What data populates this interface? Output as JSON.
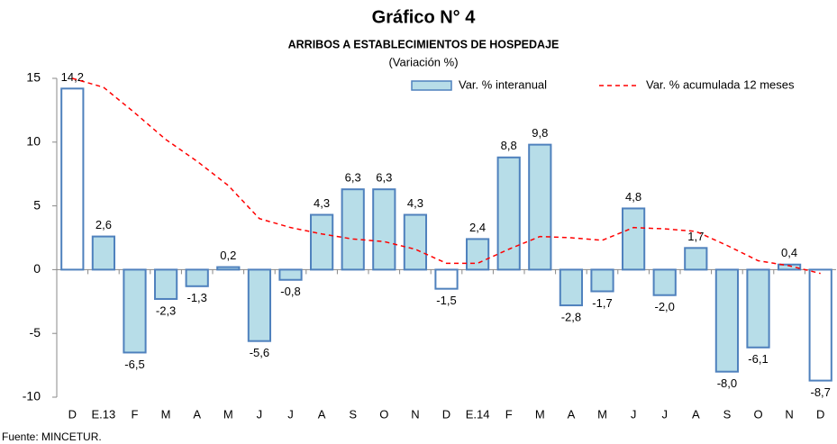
{
  "chart_data": {
    "type": "bar_line",
    "title": "Gráfico N° 4",
    "subtitle": "ARRIBOS A ESTABLECIMIENTOS DE HOSPEDAJE",
    "unit_label": "(Variación %)",
    "source": "Fuente: MINCETUR.",
    "categories": [
      "D",
      "E.13",
      "F",
      "M",
      "A",
      "M",
      "J",
      "J",
      "A",
      "S",
      "O",
      "N",
      "D",
      "E.14",
      "F",
      "M",
      "A",
      "M",
      "J",
      "J",
      "A",
      "S",
      "O",
      "N",
      "D"
    ],
    "series": [
      {
        "name": "Var. % interanual",
        "type": "bar",
        "color": "#b7dde8",
        "edge_color": "#4f81bd",
        "colors": [
          "#ffffff",
          "#b7dde8",
          "#b7dde8",
          "#b7dde8",
          "#b7dde8",
          "#b7dde8",
          "#b7dde8",
          "#b7dde8",
          "#b7dde8",
          "#b7dde8",
          "#b7dde8",
          "#b7dde8",
          "#ffffff",
          "#b7dde8",
          "#b7dde8",
          "#b7dde8",
          "#b7dde8",
          "#b7dde8",
          "#b7dde8",
          "#b7dde8",
          "#b7dde8",
          "#b7dde8",
          "#b7dde8",
          "#b7dde8",
          "#ffffff"
        ],
        "values": [
          14.2,
          2.6,
          -6.5,
          -2.3,
          -1.3,
          0.2,
          -5.6,
          -0.8,
          4.3,
          6.3,
          6.3,
          4.3,
          -1.5,
          2.4,
          8.8,
          9.8,
          -2.8,
          -1.7,
          4.8,
          -2.0,
          1.7,
          -8.0,
          -6.1,
          0.4,
          -8.7
        ],
        "value_labels": [
          "14,2",
          "2,6",
          "-6,5",
          "-2,3",
          "-1,3",
          "0,2",
          "-5,6",
          "-0,8",
          "4,3",
          "6,3",
          "6,3",
          "4,3",
          "-1,5",
          "2,4",
          "8,8",
          "9,8",
          "-2,8",
          "-1,7",
          "4,8",
          "-2,0",
          "1,7",
          "-8,0",
          "-6,1",
          "0,4",
          "-8,7"
        ]
      },
      {
        "name": "Var. % acumulada 12 meses",
        "type": "line",
        "color": "#ff0000",
        "dashed": true,
        "values": [
          15.0,
          14.3,
          12.3,
          10.2,
          8.5,
          6.6,
          4.0,
          3.3,
          2.8,
          2.4,
          2.2,
          1.6,
          0.5,
          0.5,
          1.6,
          2.6,
          2.5,
          2.3,
          3.3,
          3.2,
          3.0,
          1.9,
          0.7,
          0.3,
          -0.3
        ]
      }
    ],
    "ylim": [
      -10,
      15
    ],
    "yticks": [
      -10,
      -5,
      0,
      5,
      10,
      15
    ],
    "grid": false,
    "legend": "top-right"
  }
}
